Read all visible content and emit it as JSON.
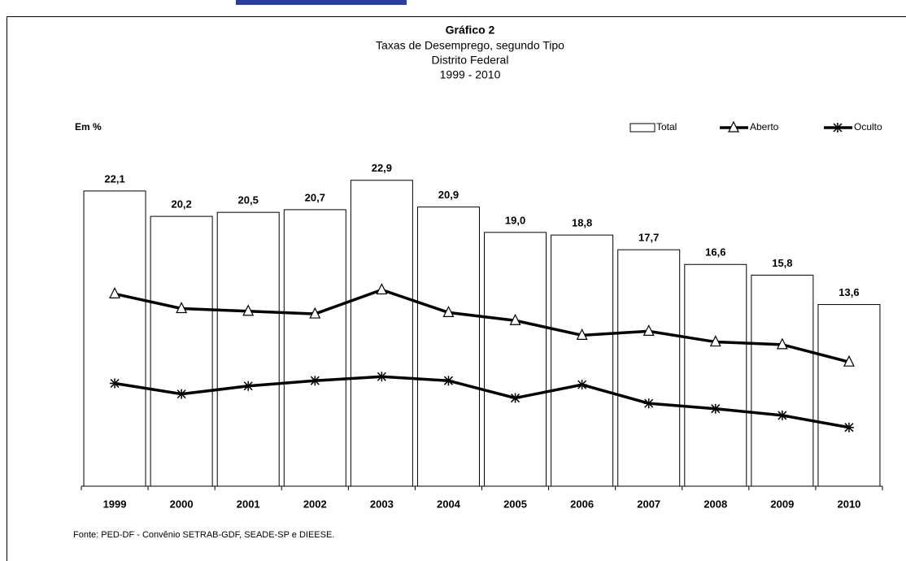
{
  "chart_data": {
    "type": "bar",
    "title": "Gráfico 2",
    "subtitle": [
      "Taxas de Desemprego, segundo Tipo",
      "Distrito Federal",
      "1999 - 2010"
    ],
    "y_label": "Em %",
    "source": "Fonte: PED-DF - Convênio SETRAB-GDF, SEADE-SP e DIEESE.",
    "categories": [
      "1999",
      "2000",
      "2001",
      "2002",
      "2003",
      "2004",
      "2005",
      "2006",
      "2007",
      "2008",
      "2009",
      "2010"
    ],
    "ylim": [
      0,
      36.4
    ],
    "series": [
      {
        "name": "Total",
        "type": "bar",
        "color": "#ffffff",
        "values": [
          22.1,
          20.2,
          20.5,
          20.7,
          22.9,
          20.9,
          19.0,
          18.8,
          17.7,
          16.6,
          15.8,
          13.6
        ],
        "value_labels": [
          "22,1",
          "20,2",
          "20,5",
          "20,7",
          "22,9",
          "20,9",
          "19,0",
          "18,8",
          "17,7",
          "16,6",
          "15,8",
          "13,6"
        ]
      },
      {
        "name": "Aberto",
        "type": "line",
        "marker": "triangle",
        "color": "#000000",
        "values": [
          14.4,
          13.3,
          13.1,
          12.9,
          14.7,
          13.0,
          12.4,
          11.3,
          11.6,
          10.8,
          10.6,
          9.3
        ]
      },
      {
        "name": "Oculto",
        "type": "line",
        "marker": "asterisk",
        "color": "#000000",
        "values": [
          7.7,
          6.9,
          7.5,
          7.9,
          8.2,
          7.9,
          6.6,
          7.6,
          6.2,
          5.8,
          5.3,
          4.4
        ]
      }
    ]
  }
}
